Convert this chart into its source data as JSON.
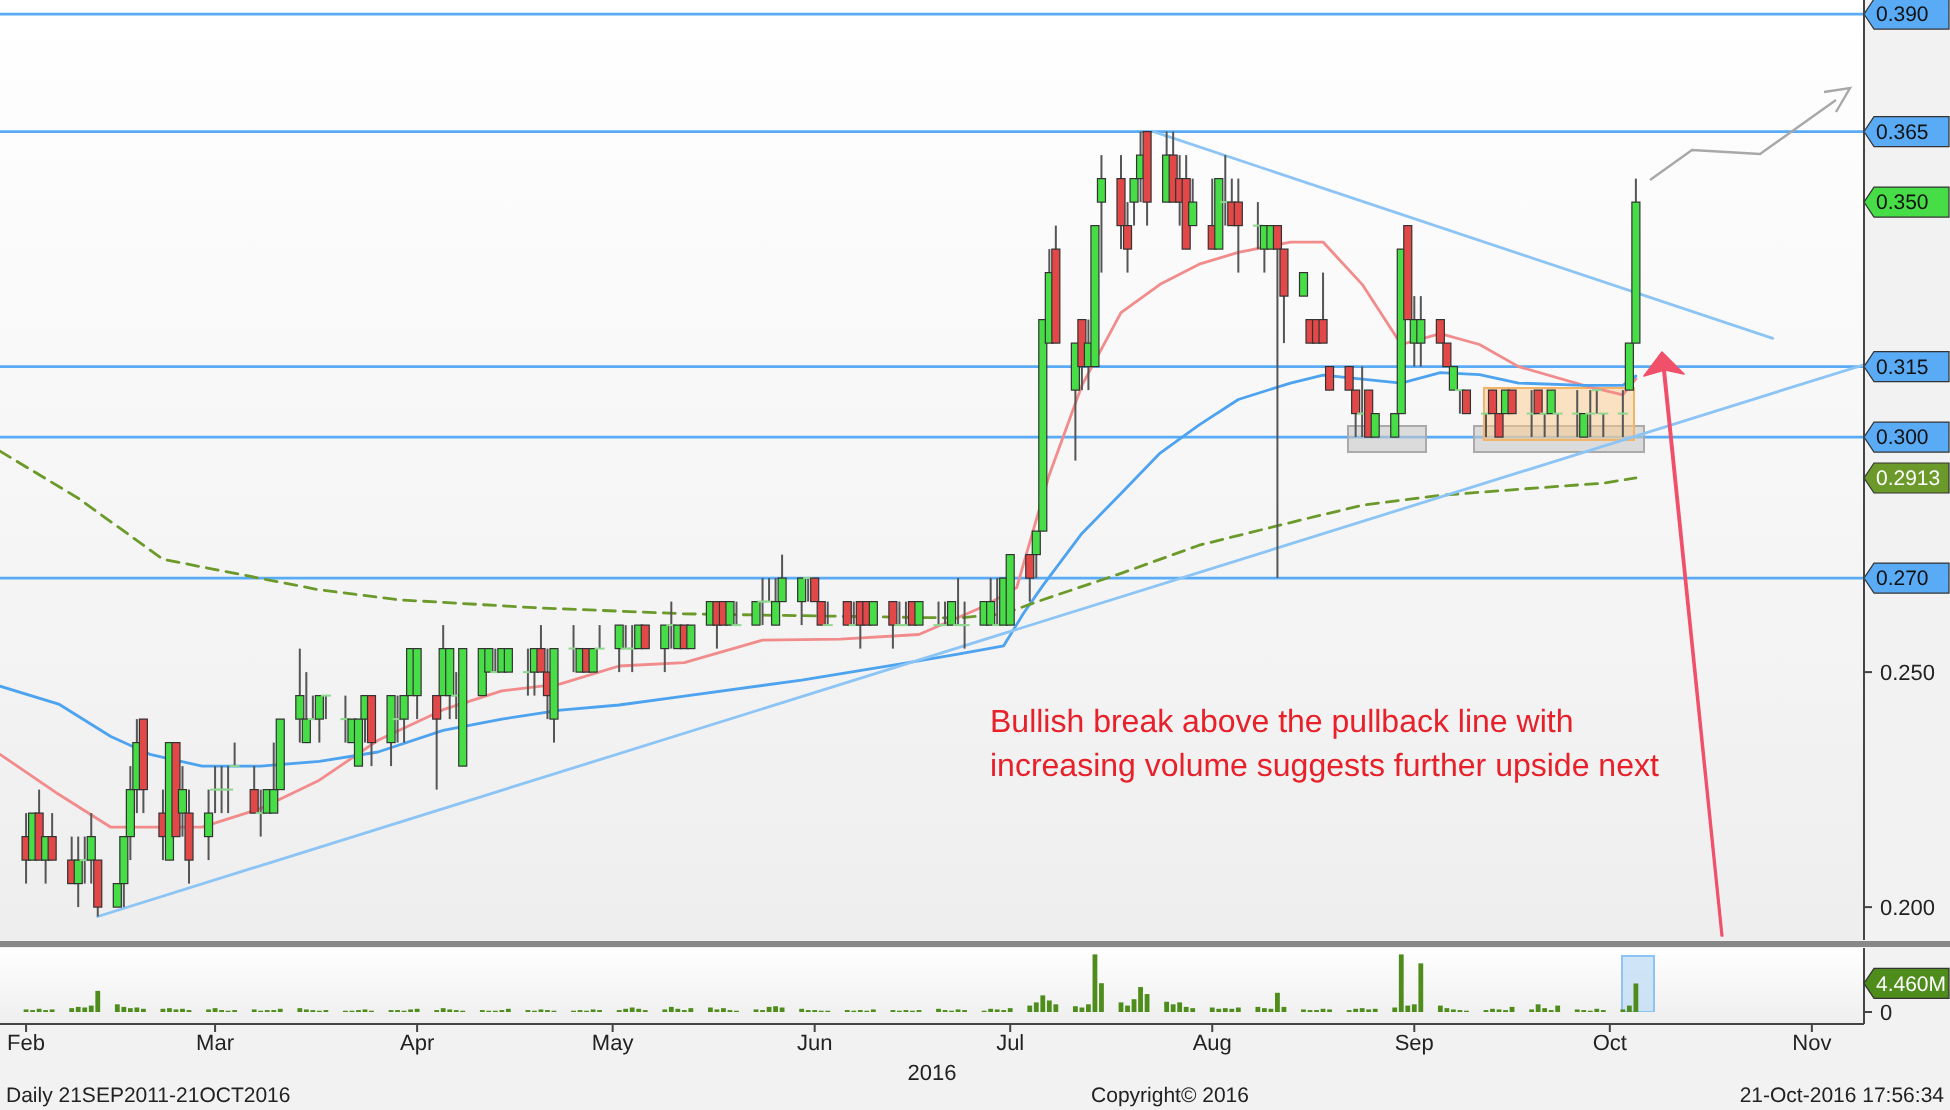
{
  "chart_data": [
    {
      "type": "candlestick",
      "xlim": [
        "2016-01-28",
        "2016-11-09"
      ],
      "ylim": [
        0.193,
        0.393
      ],
      "tick_labels": "y",
      "yticks": [
        {
          "value": 0.2,
          "label": "0.200"
        },
        {
          "value": 0.25,
          "label": "0.250"
        }
      ],
      "x": [
        "2016-02-01",
        "2016-02-02",
        "2016-02-03",
        "2016-02-04",
        "2016-02-05",
        "2016-02-08",
        "2016-02-09",
        "2016-02-10",
        "2016-02-11",
        "2016-02-12",
        "2016-02-15",
        "2016-02-16",
        "2016-02-17",
        "2016-02-18",
        "2016-02-19",
        "2016-02-22",
        "2016-02-23",
        "2016-02-24",
        "2016-02-25",
        "2016-02-26",
        "2016-02-29",
        "2016-03-01",
        "2016-03-02",
        "2016-03-03",
        "2016-03-04",
        "2016-03-07",
        "2016-03-08",
        "2016-03-09",
        "2016-03-10",
        "2016-03-11",
        "2016-03-14",
        "2016-03-15",
        "2016-03-16",
        "2016-03-17",
        "2016-03-18",
        "2016-03-21",
        "2016-03-22",
        "2016-03-23",
        "2016-03-24",
        "2016-03-25",
        "2016-03-28",
        "2016-03-29",
        "2016-03-30",
        "2016-03-31",
        "2016-04-01",
        "2016-04-04",
        "2016-04-05",
        "2016-04-06",
        "2016-04-07",
        "2016-04-08",
        "2016-04-11",
        "2016-04-12",
        "2016-04-13",
        "2016-04-14",
        "2016-04-15",
        "2016-04-18",
        "2016-04-19",
        "2016-04-20",
        "2016-04-21",
        "2016-04-22",
        "2016-04-25",
        "2016-04-26",
        "2016-04-27",
        "2016-04-28",
        "2016-04-29",
        "2016-05-02",
        "2016-05-03",
        "2016-05-04",
        "2016-05-05",
        "2016-05-06",
        "2016-05-09",
        "2016-05-10",
        "2016-05-11",
        "2016-05-12",
        "2016-05-13",
        "2016-05-16",
        "2016-05-17",
        "2016-05-18",
        "2016-05-19",
        "2016-05-20",
        "2016-05-23",
        "2016-05-24",
        "2016-05-25",
        "2016-05-26",
        "2016-05-27",
        "2016-05-30",
        "2016-05-31",
        "2016-06-01",
        "2016-06-02",
        "2016-06-03",
        "2016-06-06",
        "2016-06-07",
        "2016-06-08",
        "2016-06-09",
        "2016-06-10",
        "2016-06-13",
        "2016-06-14",
        "2016-06-15",
        "2016-06-16",
        "2016-06-17",
        "2016-06-20",
        "2016-06-21",
        "2016-06-22",
        "2016-06-23",
        "2016-06-24",
        "2016-06-27",
        "2016-06-28",
        "2016-06-29",
        "2016-06-30",
        "2016-07-01",
        "2016-07-04",
        "2016-07-05",
        "2016-07-06",
        "2016-07-07",
        "2016-07-08",
        "2016-07-11",
        "2016-07-12",
        "2016-07-13",
        "2016-07-14",
        "2016-07-15",
        "2016-07-18",
        "2016-07-19",
        "2016-07-20",
        "2016-07-21",
        "2016-07-22",
        "2016-07-25",
        "2016-07-26",
        "2016-07-27",
        "2016-07-28",
        "2016-07-29",
        "2016-08-01",
        "2016-08-02",
        "2016-08-03",
        "2016-08-04",
        "2016-08-05",
        "2016-08-08",
        "2016-08-09",
        "2016-08-10",
        "2016-08-11",
        "2016-08-12",
        "2016-08-15",
        "2016-08-16",
        "2016-08-17",
        "2016-08-18",
        "2016-08-19",
        "2016-08-22",
        "2016-08-23",
        "2016-08-24",
        "2016-08-25",
        "2016-08-26",
        "2016-08-29",
        "2016-08-30",
        "2016-08-31",
        "2016-09-01",
        "2016-09-02",
        "2016-09-05",
        "2016-09-06",
        "2016-09-07",
        "2016-09-08",
        "2016-09-09",
        "2016-09-12",
        "2016-09-13",
        "2016-09-14",
        "2016-09-15",
        "2016-09-16",
        "2016-09-19",
        "2016-09-20",
        "2016-09-21",
        "2016-09-22",
        "2016-09-23",
        "2016-09-26",
        "2016-09-27",
        "2016-09-28",
        "2016-09-29",
        "2016-09-30",
        "2016-10-03",
        "2016-10-04",
        "2016-10-05"
      ],
      "ohlc": [
        [
          0.215,
          0.22,
          0.205,
          0.21
        ],
        [
          0.21,
          0.22,
          0.21,
          0.22
        ],
        [
          0.22,
          0.225,
          0.21,
          0.21
        ],
        [
          0.21,
          0.215,
          0.205,
          0.215
        ],
        [
          0.215,
          0.22,
          0.21,
          0.21
        ],
        [
          0.21,
          0.215,
          0.205,
          0.205
        ],
        [
          0.205,
          0.215,
          0.2,
          0.21
        ],
        [
          0.21,
          0.215,
          0.205,
          0.21
        ],
        [
          0.21,
          0.22,
          0.205,
          0.215
        ],
        [
          0.21,
          0.21,
          0.198,
          0.2
        ],
        [
          0.2,
          0.205,
          0.2,
          0.205
        ],
        [
          0.205,
          0.215,
          0.2,
          0.215
        ],
        [
          0.215,
          0.23,
          0.21,
          0.225
        ],
        [
          0.225,
          0.24,
          0.22,
          0.235
        ],
        [
          0.24,
          0.24,
          0.22,
          0.225
        ],
        [
          0.22,
          0.225,
          0.21,
          0.215
        ],
        [
          0.21,
          0.235,
          0.21,
          0.235
        ],
        [
          0.235,
          0.235,
          0.215,
          0.215
        ],
        [
          0.22,
          0.23,
          0.215,
          0.225
        ],
        [
          0.22,
          0.225,
          0.205,
          0.21
        ],
        [
          0.215,
          0.225,
          0.21,
          0.22
        ],
        [
          0.225,
          0.23,
          0.22,
          0.225
        ],
        [
          0.225,
          0.23,
          0.22,
          0.225
        ],
        [
          0.225,
          0.23,
          0.22,
          0.225
        ],
        [
          0.23,
          0.235,
          0.23,
          0.23
        ],
        [
          0.225,
          0.23,
          0.22,
          0.22
        ],
        [
          0.22,
          0.225,
          0.215,
          0.22
        ],
        [
          0.22,
          0.225,
          0.22,
          0.225
        ],
        [
          0.22,
          0.235,
          0.22,
          0.225
        ],
        [
          0.225,
          0.24,
          0.225,
          0.24
        ],
        [
          0.24,
          0.255,
          0.235,
          0.245
        ],
        [
          0.235,
          0.25,
          0.235,
          0.24
        ],
        [
          0.24,
          0.245,
          0.24,
          0.24
        ],
        [
          0.24,
          0.245,
          0.235,
          0.245
        ],
        [
          0.245,
          0.245,
          0.24,
          0.245
        ],
        [
          0.24,
          0.245,
          0.235,
          0.24
        ],
        [
          0.235,
          0.24,
          0.235,
          0.24
        ],
        [
          0.23,
          0.24,
          0.23,
          0.24
        ],
        [
          0.24,
          0.245,
          0.235,
          0.245
        ],
        [
          0.245,
          0.245,
          0.23,
          0.235
        ],
        [
          0.235,
          0.245,
          0.23,
          0.245
        ],
        [
          0.24,
          0.245,
          0.235,
          0.24
        ],
        [
          0.24,
          0.245,
          0.235,
          0.245
        ],
        [
          0.245,
          0.255,
          0.245,
          0.255
        ],
        [
          0.245,
          0.255,
          0.24,
          0.255
        ],
        [
          0.245,
          0.245,
          0.225,
          0.24
        ],
        [
          0.245,
          0.26,
          0.245,
          0.255
        ],
        [
          0.245,
          0.255,
          0.24,
          0.255
        ],
        [
          0.245,
          0.25,
          0.24,
          0.245
        ],
        [
          0.23,
          0.255,
          0.23,
          0.255
        ],
        [
          0.245,
          0.255,
          0.245,
          0.255
        ],
        [
          0.25,
          0.255,
          0.25,
          0.255
        ],
        [
          0.25,
          0.255,
          0.25,
          0.25
        ],
        [
          0.25,
          0.255,
          0.25,
          0.255
        ],
        [
          0.25,
          0.255,
          0.25,
          0.255
        ],
        [
          0.25,
          0.255,
          0.245,
          0.25
        ],
        [
          0.25,
          0.255,
          0.245,
          0.255
        ],
        [
          0.255,
          0.26,
          0.25,
          0.25
        ],
        [
          0.25,
          0.255,
          0.24,
          0.245
        ],
        [
          0.24,
          0.255,
          0.235,
          0.255
        ],
        [
          0.255,
          0.26,
          0.25,
          0.255
        ],
        [
          0.25,
          0.255,
          0.25,
          0.255
        ],
        [
          0.255,
          0.255,
          0.25,
          0.25
        ],
        [
          0.25,
          0.255,
          0.25,
          0.255
        ],
        [
          0.255,
          0.26,
          0.255,
          0.255
        ],
        [
          0.255,
          0.26,
          0.25,
          0.26
        ],
        [
          0.255,
          0.26,
          0.255,
          0.255
        ],
        [
          0.255,
          0.26,
          0.25,
          0.255
        ],
        [
          0.255,
          0.26,
          0.255,
          0.26
        ],
        [
          0.26,
          0.26,
          0.255,
          0.255
        ],
        [
          0.255,
          0.26,
          0.25,
          0.26
        ],
        [
          0.26,
          0.265,
          0.255,
          0.26
        ],
        [
          0.255,
          0.26,
          0.255,
          0.26
        ],
        [
          0.26,
          0.26,
          0.255,
          0.255
        ],
        [
          0.255,
          0.26,
          0.255,
          0.26
        ],
        [
          0.26,
          0.265,
          0.26,
          0.265
        ],
        [
          0.265,
          0.265,
          0.255,
          0.26
        ],
        [
          0.265,
          0.265,
          0.26,
          0.26
        ],
        [
          0.26,
          0.265,
          0.26,
          0.265
        ],
        [
          0.26,
          0.265,
          0.26,
          0.26
        ],
        [
          0.26,
          0.265,
          0.26,
          0.265
        ],
        [
          0.265,
          0.27,
          0.26,
          0.265
        ],
        [
          0.265,
          0.27,
          0.265,
          0.265
        ],
        [
          0.26,
          0.27,
          0.26,
          0.265
        ],
        [
          0.265,
          0.275,
          0.265,
          0.27
        ],
        [
          0.265,
          0.27,
          0.26,
          0.27
        ],
        [
          0.27,
          0.27,
          0.265,
          0.27
        ],
        [
          0.27,
          0.27,
          0.265,
          0.265
        ],
        [
          0.265,
          0.265,
          0.26,
          0.26
        ],
        [
          0.26,
          0.265,
          0.26,
          0.26
        ],
        [
          0.265,
          0.265,
          0.26,
          0.26
        ],
        [
          0.26,
          0.265,
          0.26,
          0.26
        ],
        [
          0.265,
          0.265,
          0.255,
          0.26
        ],
        [
          0.265,
          0.265,
          0.26,
          0.26
        ],
        [
          0.26,
          0.265,
          0.26,
          0.265
        ],
        [
          0.265,
          0.265,
          0.255,
          0.26
        ],
        [
          0.26,
          0.265,
          0.26,
          0.26
        ],
        [
          0.26,
          0.265,
          0.26,
          0.26
        ],
        [
          0.265,
          0.265,
          0.26,
          0.26
        ],
        [
          0.26,
          0.265,
          0.26,
          0.265
        ],
        [
          0.26,
          0.265,
          0.26,
          0.26
        ],
        [
          0.26,
          0.265,
          0.26,
          0.26
        ],
        [
          0.26,
          0.265,
          0.26,
          0.265
        ],
        [
          0.26,
          0.27,
          0.26,
          0.26
        ],
        [
          0.26,
          0.265,
          0.255,
          0.26
        ],
        [
          0.26,
          0.265,
          0.26,
          0.265
        ],
        [
          0.26,
          0.27,
          0.26,
          0.265
        ],
        [
          0.26,
          0.27,
          0.26,
          0.26
        ],
        [
          0.26,
          0.27,
          0.26,
          0.27
        ],
        [
          0.26,
          0.275,
          0.26,
          0.275
        ],
        [
          0.275,
          0.275,
          0.265,
          0.27
        ],
        [
          0.275,
          0.28,
          0.27,
          0.28
        ],
        [
          0.28,
          0.325,
          0.28,
          0.325
        ],
        [
          0.32,
          0.34,
          0.32,
          0.335
        ],
        [
          0.34,
          0.345,
          0.32,
          0.32
        ],
        [
          0.31,
          0.32,
          0.295,
          0.32
        ],
        [
          0.325,
          0.325,
          0.31,
          0.315
        ],
        [
          0.315,
          0.325,
          0.31,
          0.32
        ],
        [
          0.315,
          0.345,
          0.315,
          0.345
        ],
        [
          0.35,
          0.36,
          0.335,
          0.355
        ],
        [
          0.355,
          0.36,
          0.34,
          0.345
        ],
        [
          0.345,
          0.35,
          0.335,
          0.34
        ],
        [
          0.35,
          0.355,
          0.345,
          0.355
        ],
        [
          0.355,
          0.365,
          0.35,
          0.36
        ],
        [
          0.365,
          0.365,
          0.345,
          0.35
        ],
        [
          0.35,
          0.365,
          0.35,
          0.36
        ],
        [
          0.36,
          0.365,
          0.35,
          0.35
        ],
        [
          0.355,
          0.36,
          0.345,
          0.35
        ],
        [
          0.355,
          0.36,
          0.34,
          0.34
        ],
        [
          0.345,
          0.355,
          0.345,
          0.35
        ],
        [
          0.345,
          0.355,
          0.34,
          0.34
        ],
        [
          0.34,
          0.355,
          0.34,
          0.355
        ],
        [
          0.35,
          0.36,
          0.345,
          0.35
        ],
        [
          0.35,
          0.355,
          0.345,
          0.345
        ],
        [
          0.35,
          0.355,
          0.335,
          0.345
        ],
        [
          0.345,
          0.35,
          0.34,
          0.345
        ],
        [
          0.34,
          0.345,
          0.335,
          0.345
        ],
        [
          0.34,
          0.345,
          0.34,
          0.345
        ],
        [
          0.345,
          0.345,
          0.27,
          0.34
        ],
        [
          0.34,
          0.34,
          0.32,
          0.33
        ],
        [
          0.33,
          0.335,
          0.33,
          0.335
        ],
        [
          0.325,
          0.325,
          0.32,
          0.32
        ],
        [
          0.325,
          0.325,
          0.32,
          0.32
        ],
        [
          0.325,
          0.335,
          0.32,
          0.32
        ],
        [
          0.315,
          0.315,
          0.31,
          0.31
        ],
        [
          0.315,
          0.315,
          0.31,
          0.31
        ],
        [
          0.31,
          0.31,
          0.3,
          0.305
        ],
        [
          0.305,
          0.315,
          0.3,
          0.305
        ],
        [
          0.31,
          0.31,
          0.3,
          0.3
        ],
        [
          0.3,
          0.305,
          0.3,
          0.305
        ],
        [
          0.3,
          0.305,
          0.3,
          0.305
        ],
        [
          0.305,
          0.34,
          0.305,
          0.34
        ],
        [
          0.345,
          0.345,
          0.325,
          0.325
        ],
        [
          0.32,
          0.33,
          0.315,
          0.325
        ],
        [
          0.32,
          0.33,
          0.315,
          0.325
        ],
        [
          0.325,
          0.325,
          0.32,
          0.32
        ],
        [
          0.32,
          0.32,
          0.315,
          0.315
        ],
        [
          0.31,
          0.315,
          0.31,
          0.315
        ],
        [
          0.31,
          0.31,
          0.305,
          0.31
        ],
        [
          0.31,
          0.31,
          0.305,
          0.305
        ],
        [
          0.305,
          0.305,
          0.3,
          0.305
        ],
        [
          0.31,
          0.31,
          0.305,
          0.305
        ],
        [
          0.305,
          0.305,
          0.3,
          0.3
        ],
        [
          0.305,
          0.31,
          0.305,
          0.31
        ],
        [
          0.31,
          0.31,
          0.305,
          0.305
        ],
        [
          0.305,
          0.31,
          0.3,
          0.305
        ],
        [
          0.31,
          0.31,
          0.305,
          0.305
        ],
        [
          0.305,
          0.305,
          0.3,
          0.305
        ],
        [
          0.305,
          0.31,
          0.305,
          0.31
        ],
        [
          0.305,
          0.305,
          0.3,
          0.305
        ],
        [
          0.305,
          0.31,
          0.3,
          0.305
        ],
        [
          0.3,
          0.305,
          0.3,
          0.305
        ],
        [
          0.305,
          0.31,
          0.3,
          0.305
        ],
        [
          0.31,
          0.31,
          0.305,
          0.31
        ],
        [
          0.305,
          0.305,
          0.3,
          0.305
        ],
        [
          0.305,
          0.31,
          0.3,
          0.305
        ],
        [
          0.31,
          0.32,
          0.31,
          0.32
        ],
        [
          0.32,
          0.355,
          0.32,
          0.35
        ]
      ],
      "series": [
        {
          "type": "line",
          "color": "#f28b8b",
          "x": [
            "2016-01-28",
            "2016-02-06",
            "2016-02-14",
            "2016-02-20",
            "2016-02-28",
            "2016-03-08",
            "2016-03-17",
            "2016-03-26",
            "2016-04-05",
            "2016-04-14",
            "2016-04-23",
            "2016-05-02",
            "2016-05-12",
            "2016-05-24",
            "2016-06-05",
            "2016-06-17",
            "2016-06-27",
            "2016-07-02",
            "2016-07-07",
            "2016-07-12",
            "2016-07-18",
            "2016-07-24",
            "2016-07-30",
            "2016-08-05",
            "2016-08-13",
            "2016-08-18",
            "2016-08-24",
            "2016-08-30",
            "2016-09-05",
            "2016-09-11",
            "2016-09-17",
            "2016-09-27",
            "2016-10-03",
            "2016-10-05"
          ],
          "values": [
            0.2325,
            0.224,
            0.217,
            0.217,
            0.217,
            0.221,
            0.227,
            0.2355,
            0.242,
            0.246,
            0.2475,
            0.2513,
            0.252,
            0.2568,
            0.257,
            0.258,
            0.264,
            0.268,
            0.292,
            0.311,
            0.3265,
            0.3325,
            0.3368,
            0.3393,
            0.3415,
            0.3415,
            0.3325,
            0.3197,
            0.322,
            0.3197,
            0.315,
            0.311,
            0.309,
            0.3124
          ]
        },
        {
          "type": "line",
          "color": "#4da3ef",
          "x": [
            "2016-01-28",
            "2016-02-06",
            "2016-02-14",
            "2016-02-20",
            "2016-02-28",
            "2016-03-08",
            "2016-03-17",
            "2016-03-26",
            "2016-04-05",
            "2016-04-14",
            "2016-04-23",
            "2016-05-02",
            "2016-05-12",
            "2016-05-30",
            "2016-06-14",
            "2016-06-23",
            "2016-06-30",
            "2016-07-03",
            "2016-07-06",
            "2016-07-12",
            "2016-07-18",
            "2016-07-24",
            "2016-07-30",
            "2016-08-05",
            "2016-08-13",
            "2016-08-18",
            "2016-08-30",
            "2016-09-05",
            "2016-09-11",
            "2016-09-17",
            "2016-09-27",
            "2016-10-03",
            "2016-10-05"
          ],
          "values": [
            0.247,
            0.2432,
            0.2363,
            0.2325,
            0.23,
            0.23,
            0.231,
            0.233,
            0.2376,
            0.24,
            0.2419,
            0.243,
            0.2449,
            0.2483,
            0.2517,
            0.2538,
            0.2556,
            0.2624,
            0.2684,
            0.2795,
            0.288,
            0.2966,
            0.3026,
            0.308,
            0.3115,
            0.3132,
            0.3115,
            0.3137,
            0.3133,
            0.3115,
            0.311,
            0.311,
            0.313
          ]
        },
        {
          "type": "line",
          "color": "#6b9a2a",
          "line_style": "dashed",
          "x": [
            "2016-01-28",
            "2016-02-09",
            "2016-02-22",
            "2016-03-17",
            "2016-03-29",
            "2016-04-19",
            "2016-05-12",
            "2016-05-30",
            "2016-06-23",
            "2016-06-30",
            "2016-07-06",
            "2016-07-18",
            "2016-07-30",
            "2016-08-15",
            "2016-08-24",
            "2016-09-05",
            "2016-09-17",
            "2016-09-30",
            "2016-10-05"
          ],
          "values": [
            0.297,
            0.287,
            0.274,
            0.2675,
            0.2654,
            0.2637,
            0.2624,
            0.262,
            0.2615,
            0.2624,
            0.2654,
            0.271,
            0.277,
            0.2825,
            0.2855,
            0.2876,
            0.2889,
            0.2902,
            0.2913
          ]
        },
        {
          "type": "line",
          "color": "#8cc4f5",
          "x": [
            "2016-02-12",
            "2016-11-09"
          ],
          "values": [
            0.198,
            0.3154
          ]
        },
        {
          "type": "line",
          "color": "#8cc4f5",
          "x": [
            "2016-07-23",
            "2016-10-26"
          ],
          "values": [
            0.365,
            0.321
          ]
        }
      ],
      "ref_lines": [
        {
          "axis": "y",
          "value": 0.39,
          "label": "0.390",
          "color": "#5aabf5"
        },
        {
          "axis": "y",
          "value": 0.365,
          "label": "0.365",
          "color": "#5aabf5"
        },
        {
          "axis": "y",
          "value": 0.315,
          "label": "0.315",
          "color": "#5aabf5"
        },
        {
          "axis": "y",
          "value": 0.3,
          "label": "0.300",
          "color": "#5aabf5"
        },
        {
          "axis": "y",
          "value": 0.27,
          "label": "0.270",
          "color": "#5aabf5"
        }
      ],
      "annotations": [
        "Bullish break above the pullback line with increasing volume suggests further upside next",
        "0.350",
        "0.2913"
      ]
    },
    {
      "type": "bar",
      "color": "#4e8c1c",
      "xlim": [
        "2016-01-28",
        "2016-11-09"
      ],
      "ylim": [
        0,
        10
      ],
      "xlabel": "2016",
      "yticks": [
        0,
        {
          "value": 4.46,
          "label": "4.460M"
        }
      ],
      "xticks": [
        {
          "value": "2016-02-01",
          "label": "Feb"
        },
        {
          "value": "2016-03-01",
          "label": "Mar"
        },
        {
          "value": "2016-04-01",
          "label": "Apr"
        },
        {
          "value": "2016-05-01",
          "label": "May"
        },
        {
          "value": "2016-06-01",
          "label": "Jun"
        },
        {
          "value": "2016-07-01",
          "label": "Jul"
        },
        {
          "value": "2016-08-01",
          "label": "Aug"
        },
        {
          "value": "2016-09-01",
          "label": "Sep"
        },
        {
          "value": "2016-10-01",
          "label": "Oct"
        },
        {
          "value": "2016-11-01",
          "label": "Nov"
        }
      ],
      "x": [
        "2016-02-01",
        "2016-02-02",
        "2016-02-03",
        "2016-02-04",
        "2016-02-05",
        "2016-02-08",
        "2016-02-09",
        "2016-02-10",
        "2016-02-11",
        "2016-02-12",
        "2016-02-15",
        "2016-02-16",
        "2016-02-17",
        "2016-02-18",
        "2016-02-19",
        "2016-02-22",
        "2016-02-23",
        "2016-02-24",
        "2016-02-25",
        "2016-02-26",
        "2016-02-29",
        "2016-03-01",
        "2016-03-02",
        "2016-03-03",
        "2016-03-04",
        "2016-03-07",
        "2016-03-08",
        "2016-03-09",
        "2016-03-10",
        "2016-03-11",
        "2016-03-14",
        "2016-03-15",
        "2016-03-16",
        "2016-03-17",
        "2016-03-18",
        "2016-03-21",
        "2016-03-22",
        "2016-03-23",
        "2016-03-24",
        "2016-03-25",
        "2016-03-28",
        "2016-03-29",
        "2016-03-30",
        "2016-03-31",
        "2016-04-01",
        "2016-04-04",
        "2016-04-05",
        "2016-04-06",
        "2016-04-07",
        "2016-04-08",
        "2016-04-11",
        "2016-04-12",
        "2016-04-13",
        "2016-04-14",
        "2016-04-15",
        "2016-04-18",
        "2016-04-19",
        "2016-04-20",
        "2016-04-21",
        "2016-04-22",
        "2016-04-25",
        "2016-04-26",
        "2016-04-27",
        "2016-04-28",
        "2016-04-29",
        "2016-05-02",
        "2016-05-03",
        "2016-05-04",
        "2016-05-05",
        "2016-05-06",
        "2016-05-09",
        "2016-05-10",
        "2016-05-11",
        "2016-05-12",
        "2016-05-13",
        "2016-05-16",
        "2016-05-17",
        "2016-05-18",
        "2016-05-19",
        "2016-05-20",
        "2016-05-23",
        "2016-05-24",
        "2016-05-25",
        "2016-05-26",
        "2016-05-27",
        "2016-05-30",
        "2016-05-31",
        "2016-06-01",
        "2016-06-02",
        "2016-06-03",
        "2016-06-06",
        "2016-06-07",
        "2016-06-08",
        "2016-06-09",
        "2016-06-10",
        "2016-06-13",
        "2016-06-14",
        "2016-06-15",
        "2016-06-16",
        "2016-06-17",
        "2016-06-20",
        "2016-06-21",
        "2016-06-22",
        "2016-06-23",
        "2016-06-24",
        "2016-06-27",
        "2016-06-28",
        "2016-06-29",
        "2016-06-30",
        "2016-07-01",
        "2016-07-04",
        "2016-07-05",
        "2016-07-06",
        "2016-07-07",
        "2016-07-08",
        "2016-07-11",
        "2016-07-12",
        "2016-07-13",
        "2016-07-14",
        "2016-07-15",
        "2016-07-18",
        "2016-07-19",
        "2016-07-20",
        "2016-07-21",
        "2016-07-22",
        "2016-07-25",
        "2016-07-26",
        "2016-07-27",
        "2016-07-28",
        "2016-07-29",
        "2016-08-01",
        "2016-08-02",
        "2016-08-03",
        "2016-08-04",
        "2016-08-05",
        "2016-08-08",
        "2016-08-09",
        "2016-08-10",
        "2016-08-11",
        "2016-08-12",
        "2016-08-15",
        "2016-08-16",
        "2016-08-17",
        "2016-08-18",
        "2016-08-19",
        "2016-08-22",
        "2016-08-23",
        "2016-08-24",
        "2016-08-25",
        "2016-08-26",
        "2016-08-29",
        "2016-08-30",
        "2016-08-31",
        "2016-09-01",
        "2016-09-02",
        "2016-09-05",
        "2016-09-06",
        "2016-09-07",
        "2016-09-08",
        "2016-09-09",
        "2016-09-12",
        "2016-09-13",
        "2016-09-14",
        "2016-09-15",
        "2016-09-16",
        "2016-09-19",
        "2016-09-20",
        "2016-09-21",
        "2016-09-22",
        "2016-09-23",
        "2016-09-26",
        "2016-09-27",
        "2016-09-28",
        "2016-09-29",
        "2016-09-30",
        "2016-10-03",
        "2016-10-04",
        "2016-10-05"
      ],
      "values": [
        0.4,
        0.3,
        0.5,
        0.3,
        0.4,
        0.6,
        0.8,
        0.7,
        1.0,
        3.3,
        1.2,
        0.8,
        0.6,
        0.7,
        0.5,
        0.5,
        0.6,
        0.4,
        0.5,
        0.3,
        0.4,
        0.6,
        0.3,
        0.2,
        0.3,
        0.4,
        0.2,
        0.3,
        0.3,
        0.5,
        0.6,
        0.4,
        0.3,
        0.2,
        0.3,
        0.2,
        0.2,
        0.3,
        0.4,
        0.2,
        0.3,
        0.3,
        0.2,
        0.4,
        0.5,
        0.3,
        0.6,
        0.4,
        0.3,
        0.2,
        0.3,
        0.2,
        0.2,
        0.3,
        0.5,
        0.3,
        0.2,
        0.4,
        0.3,
        0.2,
        0.2,
        0.3,
        0.2,
        0.4,
        0.3,
        0.3,
        0.5,
        0.7,
        0.5,
        0.3,
        0.4,
        0.8,
        0.5,
        0.3,
        0.6,
        0.7,
        0.4,
        0.6,
        0.3,
        0.2,
        0.4,
        0.3,
        0.8,
        0.9,
        0.7,
        0.5,
        0.3,
        0.3,
        0.2,
        0.2,
        0.3,
        0.2,
        0.3,
        0.2,
        0.4,
        0.3,
        0.2,
        0.3,
        0.2,
        0.3,
        0.5,
        0.3,
        0.2,
        0.4,
        0.3,
        0.2,
        0.5,
        0.4,
        0.3,
        0.6,
        1.0,
        1.5,
        2.6,
        1.8,
        1.2,
        0.9,
        0.7,
        1.2,
        9.0,
        4.5,
        1.5,
        1.0,
        2.0,
        3.9,
        2.8,
        1.6,
        1.2,
        1.5,
        0.8,
        0.6,
        0.7,
        0.5,
        0.6,
        0.5,
        0.7,
        0.8,
        0.6,
        0.5,
        3.0,
        0.8,
        0.4,
        0.3,
        0.3,
        0.5,
        0.4,
        0.3,
        0.5,
        0.6,
        0.4,
        0.5,
        0.7,
        9.0,
        1.0,
        1.2,
        7.6,
        1.0,
        0.6,
        0.4,
        0.3,
        0.2,
        0.3,
        0.5,
        0.4,
        0.3,
        0.8,
        0.4,
        1.2,
        0.6,
        0.3,
        1.0,
        0.4,
        0.3,
        0.2,
        0.5,
        0.3,
        0.4,
        1.0,
        4.46
      ],
      "annotations": [
        "Daily 21SEP2011-21OCT2016",
        "Copyright© 2016",
        "21-Oct-2016 17:56:34"
      ]
    }
  ]
}
